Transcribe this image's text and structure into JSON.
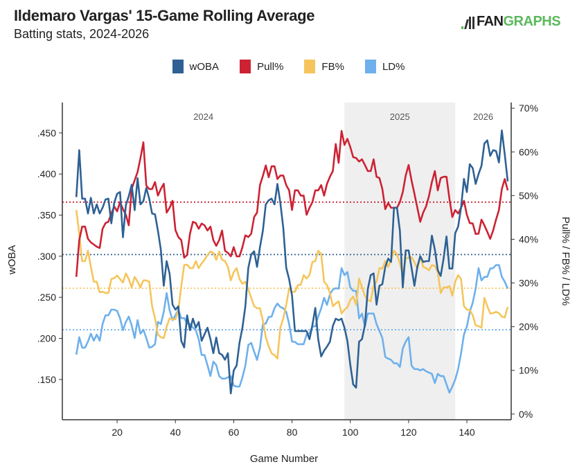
{
  "header": {
    "title": "Ildemaro Vargas' 15-Game Rolling Average",
    "subtitle": "Batting stats, 2024-2026",
    "logo_text": "FANGRAPHS",
    "logo_fan": "FAN",
    "logo_graphs": "GRAPHS"
  },
  "chart_data": {
    "type": "line",
    "title": "Ildemaro Vargas' 15-Game Rolling Average",
    "subtitle": "Batting stats, 2024-2026",
    "xlabel": "Game Number",
    "ylabel_left": "wOBA",
    "ylabel_right": "Pull% / FB% / LD%",
    "xlim": [
      1.2,
      155.2
    ],
    "ylim_left": [
      0.101,
      0.487
    ],
    "ylim_right": [
      -1.3,
      71.3
    ],
    "x_ticks": [
      20,
      40,
      60,
      80,
      100,
      120,
      140
    ],
    "y_left_ticks": [
      0.15,
      0.2,
      0.25,
      0.3,
      0.35,
      0.4,
      0.45
    ],
    "y_left_tick_labels": [
      ".150",
      ".200",
      ".250",
      ".300",
      ".350",
      ".400",
      ".450"
    ],
    "y_right_ticks": [
      0,
      10,
      20,
      30,
      40,
      50,
      60,
      70
    ],
    "y_right_tick_labels": [
      "0%",
      "10%",
      "20%",
      "30%",
      "40%",
      "50%",
      "60%",
      "70%"
    ],
    "grid": false,
    "legend_placement": "top-center",
    "seasons": [
      {
        "label": "2024",
        "start": 1.2,
        "end": 98,
        "shaded": false
      },
      {
        "label": "2025",
        "start": 98,
        "end": 136,
        "shaded": true
      },
      {
        "label": "2026",
        "start": 136,
        "end": 155.2,
        "shaded": false
      }
    ],
    "shade_color": "#efefef",
    "x": [
      6,
      7,
      8,
      9,
      10,
      11,
      12,
      13,
      14,
      15,
      16,
      17,
      18,
      19,
      20,
      21,
      22,
      23,
      24,
      25,
      26,
      27,
      28,
      29,
      30,
      31,
      32,
      33,
      34,
      35,
      36,
      37,
      38,
      39,
      40,
      41,
      42,
      43,
      44,
      45,
      46,
      47,
      48,
      49,
      50,
      51,
      52,
      53,
      54,
      55,
      56,
      57,
      58,
      59,
      60,
      61,
      62,
      63,
      64,
      65,
      66,
      67,
      68,
      69,
      70,
      71,
      72,
      73,
      74,
      75,
      76,
      77,
      78,
      79,
      80,
      81,
      82,
      83,
      84,
      85,
      86,
      87,
      88,
      89,
      90,
      91,
      92,
      93,
      94,
      95,
      96,
      97,
      98,
      99,
      100,
      101,
      102,
      103,
      104,
      105,
      106,
      107,
      108,
      109,
      110,
      111,
      112,
      113,
      114,
      115,
      116,
      117,
      118,
      119,
      120,
      121,
      122,
      123,
      124,
      125,
      126,
      127,
      128,
      129,
      130,
      131,
      132,
      133,
      134,
      135,
      136,
      137,
      138,
      139,
      140,
      141,
      142,
      143,
      144,
      145,
      146,
      147,
      148,
      149,
      150,
      151,
      152,
      153,
      154
    ],
    "series": [
      {
        "name": "wOBA",
        "axis": "left",
        "color": "#2e6194",
        "average": 0.302,
        "values": [
          0.372,
          0.429,
          0.37,
          0.37,
          0.352,
          0.371,
          0.352,
          0.363,
          0.352,
          0.359,
          0.369,
          0.37,
          0.34,
          0.365,
          0.376,
          0.378,
          0.323,
          0.362,
          0.373,
          0.387,
          0.356,
          0.395,
          0.363,
          0.367,
          0.383,
          0.37,
          0.352,
          0.351,
          0.331,
          0.308,
          0.264,
          0.294,
          0.279,
          0.241,
          0.235,
          0.239,
          0.197,
          0.189,
          0.228,
          0.21,
          0.224,
          0.213,
          0.22,
          0.197,
          0.205,
          0.213,
          0.199,
          0.182,
          0.201,
          0.182,
          0.18,
          0.174,
          0.182,
          0.133,
          0.161,
          0.167,
          0.195,
          0.213,
          0.239,
          0.286,
          0.302,
          0.306,
          0.287,
          0.311,
          0.331,
          0.363,
          0.368,
          0.37,
          0.363,
          0.388,
          0.365,
          0.334,
          0.286,
          0.272,
          0.252,
          0.209,
          0.209,
          0.209,
          0.209,
          0.209,
          0.199,
          0.216,
          0.237,
          0.199,
          0.178,
          0.185,
          0.19,
          0.196,
          0.215,
          0.224,
          0.222,
          0.224,
          0.213,
          0.197,
          0.168,
          0.144,
          0.14,
          0.196,
          0.199,
          0.216,
          0.26,
          0.277,
          0.279,
          0.241,
          0.264,
          0.266,
          0.287,
          0.297,
          0.293,
          0.359,
          0.359,
          0.331,
          0.262,
          0.307,
          0.307,
          0.286,
          0.264,
          0.287,
          0.3,
          0.293,
          0.294,
          0.294,
          0.325,
          0.308,
          0.283,
          0.276,
          0.297,
          0.324,
          0.285,
          0.285,
          0.328,
          0.336,
          0.359,
          0.394,
          0.378,
          0.412,
          0.407,
          0.388,
          0.4,
          0.41,
          0.437,
          0.441,
          0.422,
          0.429,
          0.428,
          0.414,
          0.453,
          0.424,
          0.391
        ]
      },
      {
        "name": "Pull%",
        "axis": "right",
        "color": "#cc2233",
        "average": 48.5,
        "values": [
          31.4,
          39.8,
          42.9,
          42.9,
          40.1,
          39.3,
          38.8,
          38.3,
          38.0,
          42.4,
          43.7,
          44.0,
          45.9,
          47.5,
          46.4,
          48.5,
          46.9,
          45.6,
          43.2,
          51.5,
          53.5,
          55.4,
          58.6,
          62.2,
          52.3,
          51.5,
          51.5,
          53.1,
          50.0,
          51.5,
          52.7,
          46.1,
          47.2,
          48.8,
          42.1,
          40.5,
          39.8,
          35.8,
          36.4,
          41.3,
          44.0,
          43.7,
          42.4,
          43.6,
          43.2,
          42.0,
          42.9,
          39.8,
          38.5,
          39.8,
          42.0,
          37.4,
          36.9,
          36.1,
          38.2,
          36.1,
          36.1,
          38.2,
          40.9,
          40.5,
          41.3,
          45.1,
          46.1,
          52.4,
          54.5,
          56.9,
          54.2,
          56.7,
          56.7,
          53.8,
          54.6,
          54.6,
          52.4,
          51.2,
          46.7,
          51.2,
          51.2,
          50.0,
          50.0,
          45.6,
          47.2,
          48.5,
          51.2,
          51.2,
          52.4,
          50.0,
          52.7,
          54.3,
          55.6,
          61.8,
          57.5,
          64.8,
          61.6,
          63.0,
          61.1,
          58.8,
          58.6,
          57.8,
          58.3,
          57.0,
          55.6,
          55.6,
          58.3,
          54.3,
          54.0,
          51.5,
          46.9,
          48.3,
          47.2,
          47.2,
          47.2,
          48.5,
          50.8,
          54.6,
          57.0,
          53.5,
          50.4,
          47.2,
          44.0,
          46.1,
          47.5,
          49.9,
          53.1,
          55.6,
          51.2,
          54.0,
          54.3,
          54.3,
          49.3,
          45.1,
          46.7,
          45.9,
          47.2,
          48.8,
          45.6,
          43.7,
          43.6,
          41.2,
          41.3,
          44.5,
          43.2,
          41.7,
          40.1,
          42.0,
          44.5,
          46.7,
          51.5,
          53.8,
          51.2
        ]
      },
      {
        "name": "FB%",
        "axis": "right",
        "color": "#f5c55c",
        "average": 28.8,
        "values": [
          46.7,
          41.3,
          35.0,
          35.0,
          37.4,
          33.7,
          30.3,
          30.3,
          27.9,
          28.0,
          27.7,
          27.7,
          30.9,
          31.1,
          31.7,
          30.9,
          30.1,
          32.2,
          30.9,
          29.0,
          31.4,
          30.3,
          29.0,
          30.6,
          30.6,
          30.3,
          24.7,
          21.9,
          18.2,
          17.6,
          17.4,
          20.0,
          21.9,
          21.7,
          21.7,
          23.8,
          29.3,
          34.1,
          34.2,
          33.4,
          33.4,
          35.0,
          33.4,
          34.5,
          35.3,
          36.4,
          37.2,
          36.9,
          35.3,
          37.2,
          35.3,
          35.0,
          33.7,
          30.6,
          32.5,
          33.4,
          30.9,
          29.8,
          30.3,
          28.5,
          26.6,
          24.7,
          24.2,
          24.2,
          21.4,
          17.6,
          15.5,
          13.9,
          13.5,
          12.7,
          19.8,
          21.9,
          25.0,
          28.7,
          27.9,
          28.0,
          29.5,
          29.6,
          31.8,
          31.0,
          31.8,
          34.8,
          35.0,
          37.4,
          36.6,
          30.3,
          29.5,
          27.7,
          24.7,
          25.3,
          25.8,
          23.0,
          23.9,
          24.4,
          26.1,
          26.9,
          25.0,
          31.0,
          29.0,
          27.1,
          26.1,
          25.8,
          29.3,
          30.3,
          33.4,
          33.3,
          35.0,
          33.7,
          35.3,
          37.4,
          36.6,
          34.5,
          31.8,
          35.6,
          35.8,
          35.9,
          34.8,
          33.3,
          36.1,
          33.7,
          33.4,
          32.9,
          34.1,
          33.9,
          32.5,
          27.7,
          29.0,
          29.0,
          29.3,
          27.1,
          30.3,
          31.8,
          30.9,
          24.7,
          23.9,
          23.8,
          22.6,
          20.3,
          20.1,
          19.8,
          26.6,
          24.7,
          23.0,
          23.1,
          23.4,
          23.1,
          22.3,
          22.1,
          24.5
        ]
      },
      {
        "name": "LD%",
        "axis": "right",
        "color": "#6eb0ec",
        "average": 19.3,
        "values": [
          13.6,
          17.6,
          15.2,
          15.2,
          16.6,
          18.4,
          16.8,
          18.2,
          16.8,
          20.6,
          22.6,
          22.6,
          23.9,
          23.9,
          23.6,
          21.9,
          19.2,
          21.1,
          22.3,
          20.3,
          17.4,
          21.5,
          18.4,
          19.3,
          17.4,
          15.2,
          15.4,
          16.0,
          21.1,
          20.6,
          23.4,
          27.7,
          23.8,
          21.5,
          22.6,
          23.9,
          21.9,
          22.0,
          20.7,
          20.6,
          19.8,
          19.2,
          17.1,
          13.5,
          13.5,
          11.2,
          8.7,
          12.0,
          11.2,
          8.7,
          8.1,
          8.1,
          8.4,
          8.7,
          6.5,
          6.3,
          6.3,
          8.4,
          11.1,
          15.8,
          16.3,
          14.3,
          12.4,
          15.2,
          20.6,
          20.7,
          22.2,
          22.3,
          24.2,
          25.3,
          24.5,
          24.2,
          23.4,
          20.6,
          16.6,
          16.5,
          16.0,
          16.0,
          16.0,
          18.2,
          18.5,
          20.0,
          20.1,
          22.3,
          24.2,
          26.6,
          25.0,
          27.4,
          28.5,
          28.8,
          28.7,
          33.4,
          31.8,
          32.5,
          29.0,
          28.2,
          28.2,
          21.9,
          23.0,
          20.0,
          23.0,
          23.0,
          23.0,
          20.6,
          19.0,
          17.4,
          13.1,
          12.7,
          12.4,
          11.6,
          11.6,
          10.8,
          15.0,
          16.6,
          17.6,
          11.1,
          10.3,
          10.3,
          10.0,
          10.3,
          9.8,
          9.5,
          9.2,
          7.1,
          9.2,
          8.7,
          8.7,
          6.8,
          4.9,
          6.3,
          7.9,
          10.3,
          13.9,
          18.2,
          20.0,
          23.4,
          25.5,
          28.7,
          33.4,
          30.6,
          31.4,
          31.4,
          33.3,
          33.4,
          34.1,
          34.1,
          31.4,
          30.3,
          28.7
        ]
      }
    ]
  }
}
